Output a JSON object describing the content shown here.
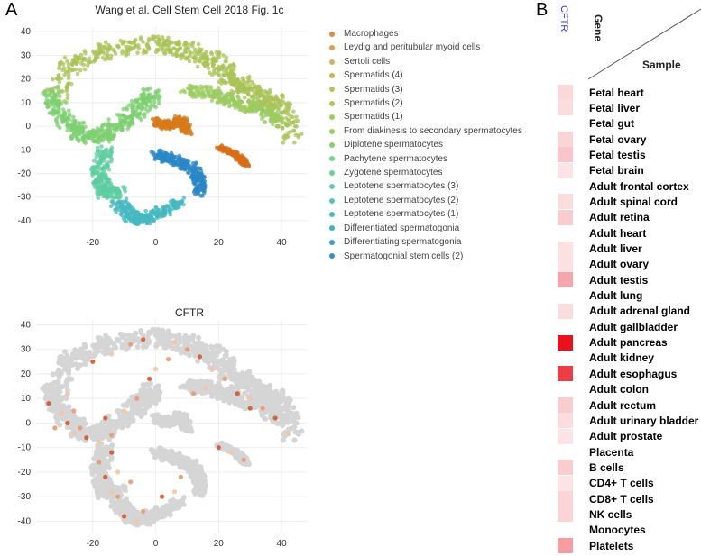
{
  "panels": {
    "a": "A",
    "b": "B"
  },
  "chart_data": [
    {
      "type": "scatter",
      "title": "Wang et al. Cell Stem Cell 2018 Fig. 1c",
      "xlim": [
        -38,
        48
      ],
      "ylim": [
        -45,
        42
      ],
      "xticks": [
        -20,
        0,
        20,
        40
      ],
      "yticks": [
        40,
        30,
        20,
        10,
        0,
        -10,
        -20,
        -30,
        -40
      ],
      "legend": [
        {
          "label": "Macrophages",
          "color": "#e0894c"
        },
        {
          "label": "Leydig and peritubular myoid cells",
          "color": "#d99d55"
        },
        {
          "label": "Sertoli cells",
          "color": "#d2b06a"
        },
        {
          "label": "Spermatids (4)",
          "color": "#c9b25a"
        },
        {
          "label": "Spermatids (3)",
          "color": "#bdbd5f"
        },
        {
          "label": "Spermatids (2)",
          "color": "#adc45c"
        },
        {
          "label": "Spermatids (1)",
          "color": "#a3c864"
        },
        {
          "label": "From diakinesis to secondary spermatocytes",
          "color": "#96cd6c"
        },
        {
          "label": "Diplotene spermatocytes",
          "color": "#86cf76"
        },
        {
          "label": "Pachytene spermatocytes",
          "color": "#78cf86"
        },
        {
          "label": "Zygotene spermatocytes",
          "color": "#6dcf98"
        },
        {
          "label": "Leptotene spermatocytes (3)",
          "color": "#63cca6"
        },
        {
          "label": "Leptotene spermatocytes (2)",
          "color": "#57c5b0"
        },
        {
          "label": "Leptotene spermatocytes (1)",
          "color": "#4bbdbb"
        },
        {
          "label": "Differentiated spermatogonia",
          "color": "#3fb0c7"
        },
        {
          "label": "Differentiating spermatogonia",
          "color": "#3aa0cd"
        },
        {
          "label": "Spermatogonial stem cells (2)",
          "color": "#3790cf"
        }
      ],
      "clusters": [
        {
          "name": "spermatids",
          "color": "#aac157",
          "path": [
            [
              -32,
              12
            ],
            [
              -28,
              25
            ],
            [
              -20,
              30
            ],
            [
              -10,
              33
            ],
            [
              0,
              35
            ],
            [
              8,
              33
            ],
            [
              14,
              30
            ],
            [
              20,
              26
            ],
            [
              24,
              20
            ],
            [
              28,
              16
            ],
            [
              34,
              12
            ],
            [
              40,
              8
            ],
            [
              44,
              -5
            ]
          ],
          "spread": 3.5
        },
        {
          "name": "early-spermatocytes",
          "color": "#7ecf72",
          "path": [
            [
              -34,
              15
            ],
            [
              -30,
              5
            ],
            [
              -25,
              -2
            ],
            [
              -20,
              -5
            ],
            [
              -14,
              -2
            ],
            [
              -8,
              4
            ],
            [
              -3,
              10
            ],
            [
              -1,
              14
            ]
          ],
          "spread": 3.0
        },
        {
          "name": "late-spermatocytes",
          "color": "#9ccb61",
          "path": [
            [
              10,
              15
            ],
            [
              18,
              14
            ],
            [
              26,
              10
            ],
            [
              34,
              6
            ],
            [
              40,
              2
            ]
          ],
          "spread": 2.5
        },
        {
          "name": "leptotene",
          "color": "#5fcca2",
          "path": [
            [
              -16,
              -10
            ],
            [
              -18,
              -20
            ],
            [
              -16,
              -28
            ],
            [
              -12,
              -28
            ]
          ],
          "spread": 2.5
        },
        {
          "name": "spermatogonia",
          "color": "#45b8c0",
          "path": [
            [
              -12,
              -32
            ],
            [
              -8,
              -38
            ],
            [
              -4,
              -40
            ],
            [
              2,
              -36
            ],
            [
              8,
              -32
            ]
          ],
          "spread": 2.3
        },
        {
          "name": "stem-cells",
          "color": "#2b87c6",
          "path": [
            [
              0,
              -12
            ],
            [
              6,
              -14
            ],
            [
              12,
              -18
            ],
            [
              14,
              -24
            ],
            [
              14,
              -28
            ]
          ],
          "spread": 2.0
        },
        {
          "name": "sertoli",
          "color": "#d77b1b",
          "path": [
            [
              0,
              2
            ],
            [
              4,
              0
            ],
            [
              8,
              3
            ],
            [
              10,
              -2
            ]
          ],
          "spread": 1.6
        },
        {
          "name": "leydig",
          "color": "#d56f1a",
          "path": [
            [
              20,
              -9
            ],
            [
              24,
              -11
            ],
            [
              27,
              -14
            ],
            [
              29,
              -16
            ]
          ],
          "spread": 1.0
        }
      ]
    },
    {
      "type": "scatter",
      "title": "CFTR",
      "xlim": [
        -38,
        48
      ],
      "ylim": [
        -45,
        42
      ],
      "xticks": [
        -20,
        0,
        20,
        40
      ],
      "yticks": [
        40,
        30,
        20,
        10,
        0,
        -10,
        -20,
        -30,
        -40
      ],
      "background_color": "#d5d5d5",
      "highlight_colors": [
        "#f4c4a4",
        "#e99a72",
        "#d05a2e"
      ],
      "expressing_points": [
        [
          -28,
          12
        ],
        [
          -26,
          5
        ],
        [
          -22,
          -6
        ],
        [
          -18,
          -8
        ],
        [
          -14,
          -5
        ],
        [
          -34,
          8
        ],
        [
          -30,
          4
        ],
        [
          -24,
          -2
        ],
        [
          -16,
          2
        ],
        [
          -10,
          5
        ],
        [
          -6,
          10
        ],
        [
          -20,
          25
        ],
        [
          -14,
          28
        ],
        [
          -8,
          32
        ],
        [
          -4,
          34
        ],
        [
          6,
          33
        ],
        [
          10,
          30
        ],
        [
          14,
          27
        ],
        [
          18,
          22
        ],
        [
          22,
          18
        ],
        [
          26,
          12
        ],
        [
          30,
          10
        ],
        [
          34,
          6
        ],
        [
          38,
          2
        ],
        [
          42,
          -4
        ],
        [
          -18,
          -16
        ],
        [
          -16,
          -22
        ],
        [
          -14,
          -28
        ],
        [
          -12,
          -30
        ],
        [
          -10,
          -38
        ],
        [
          -6,
          -40
        ],
        [
          -4,
          -36
        ],
        [
          2,
          -30
        ],
        [
          6,
          -28
        ],
        [
          8,
          -22
        ],
        [
          -14,
          -12
        ],
        [
          -12,
          -20
        ],
        [
          -8,
          -24
        ],
        [
          20,
          -10
        ],
        [
          24,
          -12
        ],
        [
          28,
          -15
        ],
        [
          30,
          6
        ],
        [
          16,
          14
        ],
        [
          12,
          12
        ],
        [
          -2,
          18
        ],
        [
          0,
          22
        ],
        [
          4,
          26
        ],
        [
          -28,
          0
        ],
        [
          -26,
          -4
        ],
        [
          -32,
          -2
        ]
      ]
    }
  ],
  "heatmap": {
    "gene": "CFTR",
    "axis_gene": "Gene",
    "axis_sample": "Sample",
    "samples": [
      {
        "name": "Fetal heart",
        "color": "#fbd9db"
      },
      {
        "name": "Fetal liver",
        "color": "#fbdde0"
      },
      {
        "name": "Fetal gut",
        "color": "#ffffff"
      },
      {
        "name": "Fetal ovary",
        "color": "#fad4d7"
      },
      {
        "name": "Fetal testis",
        "color": "#f8c5ca"
      },
      {
        "name": "Fetal brain",
        "color": "#fce3e5"
      },
      {
        "name": "Adult frontal cortex",
        "color": "#ffffff"
      },
      {
        "name": "Adult spinal cord",
        "color": "#fbdcdf"
      },
      {
        "name": "Adult retina",
        "color": "#f9ccd0"
      },
      {
        "name": "Adult heart",
        "color": "#ffffff"
      },
      {
        "name": "Adult liver",
        "color": "#fce1e3"
      },
      {
        "name": "Adult ovary",
        "color": "#fce1e3"
      },
      {
        "name": "Adult testis",
        "color": "#f4a6ad"
      },
      {
        "name": "Adult lung",
        "color": "#ffffff"
      },
      {
        "name": "Adult adrenal gland",
        "color": "#fbdcdf"
      },
      {
        "name": "Adult gallbladder",
        "color": "#ffffff"
      },
      {
        "name": "Adult pancreas",
        "color": "#e8111c"
      },
      {
        "name": "Adult kidney",
        "color": "#ffffff"
      },
      {
        "name": "Adult esophagus",
        "color": "#ec3d46"
      },
      {
        "name": "Adult colon",
        "color": "#ffffff"
      },
      {
        "name": "Adult rectum",
        "color": "#f9ccd0"
      },
      {
        "name": "Adult urinary bladder",
        "color": "#fbdcdf"
      },
      {
        "name": "Adult prostate",
        "color": "#fce3e5"
      },
      {
        "name": "Placenta",
        "color": "#ffffff"
      },
      {
        "name": "B cells",
        "color": "#f9ccd0"
      },
      {
        "name": "CD4+ T cells",
        "color": "#fce3e5"
      },
      {
        "name": "CD8+ T cells",
        "color": "#fad4d7"
      },
      {
        "name": "NK cells",
        "color": "#fad4d7"
      },
      {
        "name": "Monocytes",
        "color": "#ffffff"
      },
      {
        "name": "Platelets",
        "color": "#f59da5"
      }
    ]
  }
}
